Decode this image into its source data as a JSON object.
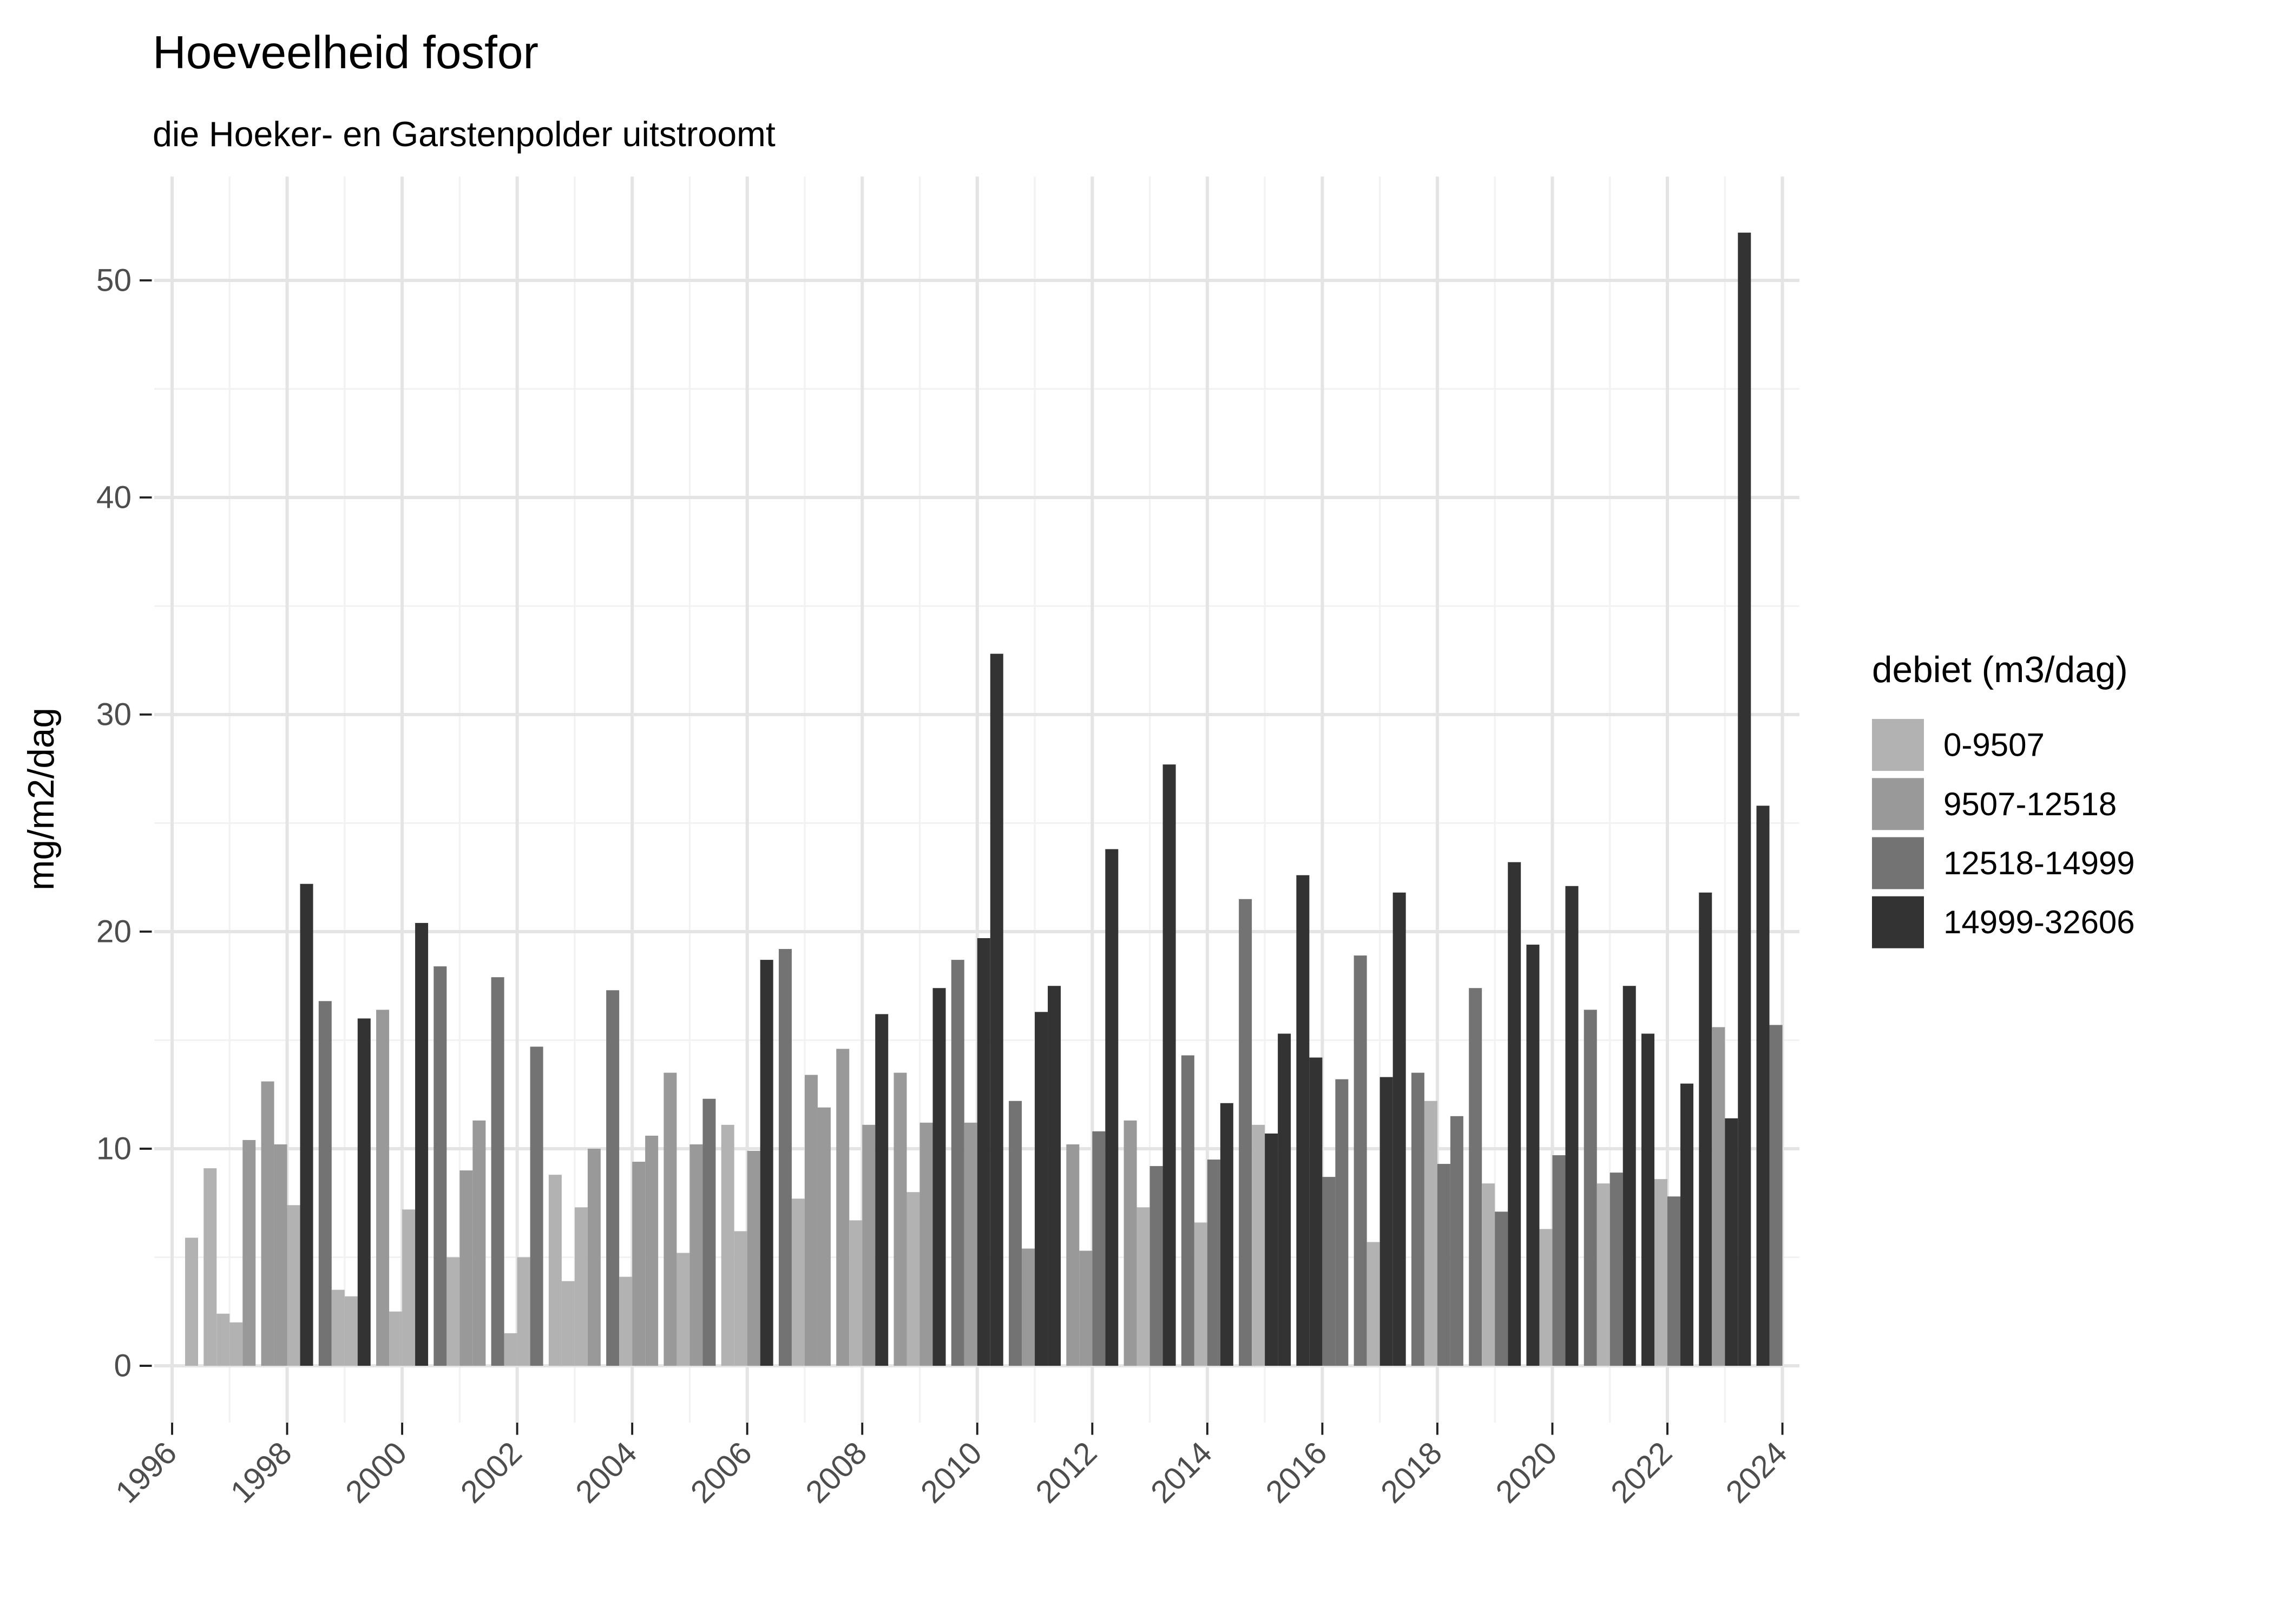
{
  "chart_data": {
    "type": "bar",
    "title": "Hoeveelheid fosfor",
    "subtitle": "die Hoeker- en Garstenpolder uitstroomt",
    "ylabel": "mg/m2/dag",
    "xlabel": "",
    "ylim": [
      0,
      55
    ],
    "grid": "on",
    "legend_position": "right",
    "y_tick_labels": [
      0,
      10,
      20,
      30,
      40,
      50
    ],
    "x_tick_labels": [
      1996,
      1998,
      2000,
      2002,
      2004,
      2006,
      2008,
      2010,
      2012,
      2014,
      2016,
      2018,
      2020,
      2022,
      2024
    ],
    "legend": {
      "title": "debiet (m3/dag)",
      "items": [
        {
          "label": "0-9507",
          "color": "#b2b2b2"
        },
        {
          "label": "9507-12518",
          "color": "#999999"
        },
        {
          "label": "12518-14999",
          "color": "#737373"
        },
        {
          "label": "14999-32606",
          "color": "#333333"
        }
      ]
    },
    "bar_columns": [
      "year",
      "quarter",
      "value_mg_m2_dag",
      "debiet_class_index"
    ],
    "bars": [
      [
        1996,
        4,
        5.9,
        0
      ],
      [
        1997,
        1,
        9.1,
        0
      ],
      [
        1997,
        2,
        2.4,
        0
      ],
      [
        1997,
        3,
        2.0,
        0
      ],
      [
        1997,
        4,
        10.4,
        1
      ],
      [
        1998,
        1,
        13.1,
        1
      ],
      [
        1998,
        2,
        10.2,
        1
      ],
      [
        1998,
        3,
        7.4,
        0
      ],
      [
        1998,
        4,
        22.2,
        3
      ],
      [
        1999,
        1,
        16.8,
        2
      ],
      [
        1999,
        2,
        3.5,
        0
      ],
      [
        1999,
        3,
        3.2,
        0
      ],
      [
        1999,
        4,
        16.0,
        3
      ],
      [
        2000,
        1,
        16.4,
        1
      ],
      [
        2000,
        2,
        2.5,
        0
      ],
      [
        2000,
        3,
        7.2,
        0
      ],
      [
        2000,
        4,
        20.4,
        3
      ],
      [
        2001,
        1,
        18.4,
        2
      ],
      [
        2001,
        2,
        5.0,
        0
      ],
      [
        2001,
        3,
        9.0,
        1
      ],
      [
        2001,
        4,
        11.3,
        1
      ],
      [
        2002,
        1,
        17.9,
        2
      ],
      [
        2002,
        2,
        1.5,
        0
      ],
      [
        2002,
        3,
        5.0,
        0
      ],
      [
        2002,
        4,
        14.7,
        2
      ],
      [
        2003,
        1,
        8.8,
        0
      ],
      [
        2003,
        2,
        3.9,
        0
      ],
      [
        2003,
        3,
        7.3,
        0
      ],
      [
        2003,
        4,
        10.0,
        1
      ],
      [
        2004,
        1,
        17.3,
        2
      ],
      [
        2004,
        2,
        4.1,
        0
      ],
      [
        2004,
        3,
        9.4,
        1
      ],
      [
        2004,
        4,
        10.6,
        1
      ],
      [
        2005,
        1,
        13.5,
        1
      ],
      [
        2005,
        2,
        5.2,
        0
      ],
      [
        2005,
        3,
        10.2,
        1
      ],
      [
        2005,
        4,
        12.3,
        2
      ],
      [
        2006,
        1,
        11.1,
        0
      ],
      [
        2006,
        2,
        6.2,
        0
      ],
      [
        2006,
        3,
        9.9,
        1
      ],
      [
        2006,
        4,
        18.7,
        3
      ],
      [
        2007,
        1,
        19.2,
        2
      ],
      [
        2007,
        2,
        7.7,
        0
      ],
      [
        2007,
        3,
        13.4,
        1
      ],
      [
        2007,
        4,
        11.9,
        1
      ],
      [
        2008,
        1,
        14.6,
        1
      ],
      [
        2008,
        2,
        6.7,
        0
      ],
      [
        2008,
        3,
        11.1,
        1
      ],
      [
        2008,
        4,
        16.2,
        3
      ],
      [
        2009,
        1,
        13.5,
        1
      ],
      [
        2009,
        2,
        8.0,
        0
      ],
      [
        2009,
        3,
        11.2,
        1
      ],
      [
        2009,
        4,
        17.4,
        3
      ],
      [
        2010,
        1,
        18.7,
        2
      ],
      [
        2010,
        2,
        11.2,
        1
      ],
      [
        2010,
        3,
        19.7,
        3
      ],
      [
        2010,
        4,
        32.8,
        3
      ],
      [
        2011,
        1,
        12.2,
        2
      ],
      [
        2011,
        2,
        5.4,
        1
      ],
      [
        2011,
        3,
        16.3,
        3
      ],
      [
        2011,
        4,
        17.5,
        3
      ],
      [
        2012,
        1,
        10.2,
        1
      ],
      [
        2012,
        2,
        5.3,
        1
      ],
      [
        2012,
        3,
        10.8,
        2
      ],
      [
        2012,
        4,
        23.8,
        3
      ],
      [
        2013,
        1,
        11.3,
        1
      ],
      [
        2013,
        2,
        7.3,
        0
      ],
      [
        2013,
        3,
        9.2,
        2
      ],
      [
        2013,
        4,
        27.7,
        3
      ],
      [
        2014,
        1,
        14.3,
        2
      ],
      [
        2014,
        2,
        6.6,
        0
      ],
      [
        2014,
        3,
        9.5,
        2
      ],
      [
        2014,
        4,
        12.1,
        3
      ],
      [
        2015,
        1,
        21.5,
        2
      ],
      [
        2015,
        2,
        11.1,
        0
      ],
      [
        2015,
        3,
        10.7,
        3
      ],
      [
        2015,
        4,
        15.3,
        3
      ],
      [
        2016,
        1,
        22.6,
        3
      ],
      [
        2016,
        2,
        14.2,
        3
      ],
      [
        2016,
        3,
        8.7,
        2
      ],
      [
        2016,
        4,
        13.2,
        2
      ],
      [
        2017,
        1,
        18.9,
        2
      ],
      [
        2017,
        2,
        5.7,
        0
      ],
      [
        2017,
        3,
        13.3,
        3
      ],
      [
        2017,
        4,
        21.8,
        3
      ],
      [
        2018,
        1,
        13.5,
        2
      ],
      [
        2018,
        2,
        12.2,
        0
      ],
      [
        2018,
        3,
        9.3,
        2
      ],
      [
        2018,
        4,
        11.5,
        2
      ],
      [
        2019,
        1,
        17.4,
        2
      ],
      [
        2019,
        2,
        8.4,
        0
      ],
      [
        2019,
        3,
        7.1,
        2
      ],
      [
        2019,
        4,
        23.2,
        3
      ],
      [
        2020,
        1,
        19.4,
        3
      ],
      [
        2020,
        2,
        6.3,
        0
      ],
      [
        2020,
        3,
        9.7,
        2
      ],
      [
        2020,
        4,
        22.1,
        3
      ],
      [
        2021,
        1,
        16.4,
        2
      ],
      [
        2021,
        2,
        8.4,
        0
      ],
      [
        2021,
        3,
        8.9,
        2
      ],
      [
        2021,
        4,
        17.5,
        3
      ],
      [
        2022,
        1,
        15.3,
        3
      ],
      [
        2022,
        2,
        8.6,
        0
      ],
      [
        2022,
        3,
        7.8,
        2
      ],
      [
        2022,
        4,
        13.0,
        3
      ],
      [
        2023,
        1,
        21.8,
        3
      ],
      [
        2023,
        2,
        15.6,
        1
      ],
      [
        2023,
        3,
        11.4,
        3
      ],
      [
        2023,
        4,
        52.2,
        3
      ],
      [
        2024,
        1,
        25.8,
        3
      ],
      [
        2024,
        2,
        15.7,
        2
      ]
    ]
  }
}
